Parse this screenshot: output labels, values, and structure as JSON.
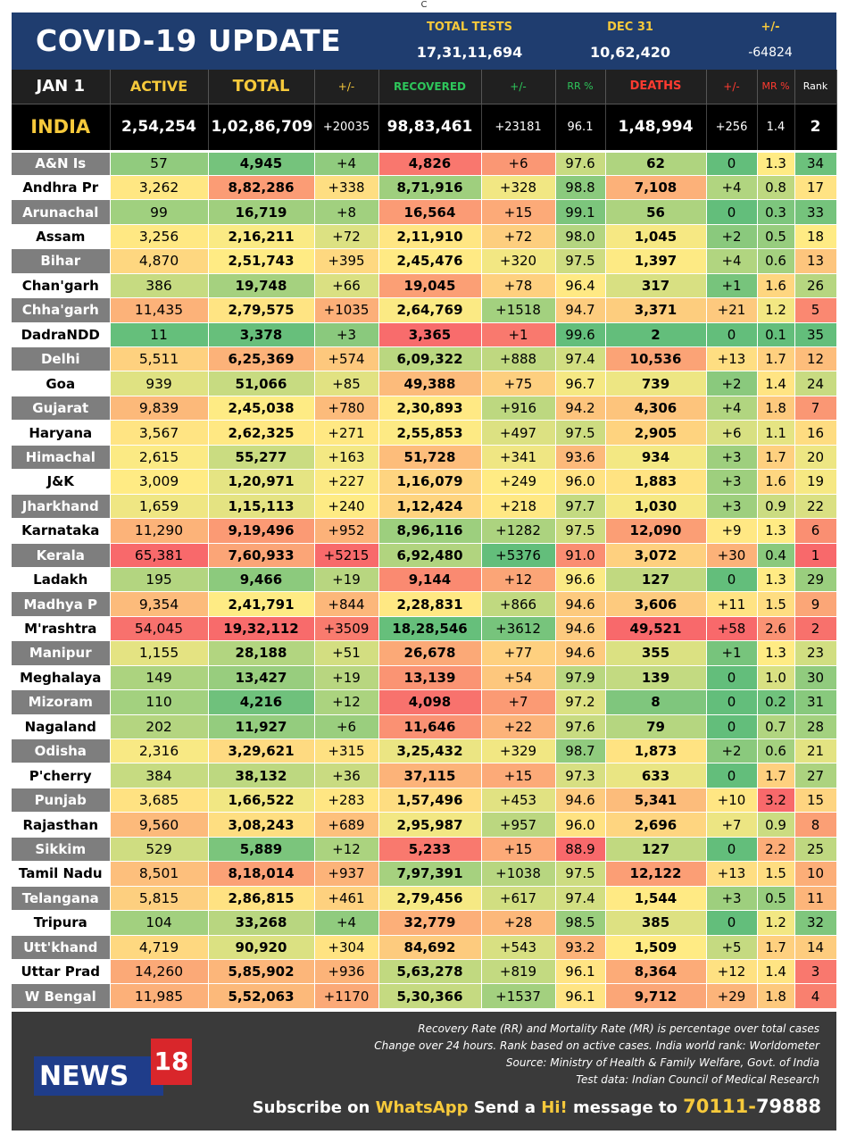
{
  "top_mark": "C",
  "header": {
    "title": "COVID-19 UPDATE",
    "total_tests_label": "TOTAL TESTS",
    "total_tests_value": "17,31,11,694",
    "date_label": "DEC 31",
    "date_value": "10,62,420",
    "change_label": "+/-",
    "change_value": "-64824"
  },
  "columns": {
    "date": "JAN 1",
    "active": "ACTIVE",
    "total": "TOTAL",
    "total_change": "+/-",
    "recovered": "RECOVERED",
    "recovered_change": "+/-",
    "rr": "RR %",
    "deaths": "DEATHS",
    "deaths_change": "+/-",
    "mr": "MR %",
    "rank": "Rank"
  },
  "india": {
    "name": "INDIA",
    "active": "2,54,254",
    "total": "1,02,86,709",
    "total_change": "+20035",
    "recovered": "98,83,461",
    "recovered_change": "+23181",
    "rr": "96.1",
    "deaths": "1,48,994",
    "deaths_change": "+256",
    "mr": "1.4",
    "rank": "2"
  },
  "rows": [
    {
      "name": "A&N Is",
      "active": "57",
      "total": "4,945",
      "total_change": "+4",
      "recovered": "4,826",
      "recovered_change": "+6",
      "rr": "97.6",
      "deaths": "62",
      "deaths_change": "0",
      "mr": "1.3",
      "rank": "34"
    },
    {
      "name": "Andhra Pr",
      "active": "3,262",
      "total": "8,82,286",
      "total_change": "+338",
      "recovered": "8,71,916",
      "recovered_change": "+328",
      "rr": "98.8",
      "deaths": "7,108",
      "deaths_change": "+4",
      "mr": "0.8",
      "rank": "17"
    },
    {
      "name": "Arunachal",
      "active": "99",
      "total": "16,719",
      "total_change": "+8",
      "recovered": "16,564",
      "recovered_change": "+15",
      "rr": "99.1",
      "deaths": "56",
      "deaths_change": "0",
      "mr": "0.3",
      "rank": "33"
    },
    {
      "name": "Assam",
      "active": "3,256",
      "total": "2,16,211",
      "total_change": "+72",
      "recovered": "2,11,910",
      "recovered_change": "+72",
      "rr": "98.0",
      "deaths": "1,045",
      "deaths_change": "+2",
      "mr": "0.5",
      "rank": "18"
    },
    {
      "name": "Bihar",
      "active": "4,870",
      "total": "2,51,743",
      "total_change": "+395",
      "recovered": "2,45,476",
      "recovered_change": "+320",
      "rr": "97.5",
      "deaths": "1,397",
      "deaths_change": "+4",
      "mr": "0.6",
      "rank": "13"
    },
    {
      "name": "Chan'garh",
      "active": "386",
      "total": "19,748",
      "total_change": "+66",
      "recovered": "19,045",
      "recovered_change": "+78",
      "rr": "96.4",
      "deaths": "317",
      "deaths_change": "+1",
      "mr": "1.6",
      "rank": "26"
    },
    {
      "name": "Chha'garh",
      "active": "11,435",
      "total": "2,79,575",
      "total_change": "+1035",
      "recovered": "2,64,769",
      "recovered_change": "+1518",
      "rr": "94.7",
      "deaths": "3,371",
      "deaths_change": "+21",
      "mr": "1.2",
      "rank": "5"
    },
    {
      "name": "DadraNDD",
      "active": "11",
      "total": "3,378",
      "total_change": "+3",
      "recovered": "3,365",
      "recovered_change": "+1",
      "rr": "99.6",
      "deaths": "2",
      "deaths_change": "0",
      "mr": "0.1",
      "rank": "35"
    },
    {
      "name": "Delhi",
      "active": "5,511",
      "total": "6,25,369",
      "total_change": "+574",
      "recovered": "6,09,322",
      "recovered_change": "+888",
      "rr": "97.4",
      "deaths": "10,536",
      "deaths_change": "+13",
      "mr": "1.7",
      "rank": "12"
    },
    {
      "name": "Goa",
      "active": "939",
      "total": "51,066",
      "total_change": "+85",
      "recovered": "49,388",
      "recovered_change": "+75",
      "rr": "96.7",
      "deaths": "739",
      "deaths_change": "+2",
      "mr": "1.4",
      "rank": "24"
    },
    {
      "name": "Gujarat",
      "active": "9,839",
      "total": "2,45,038",
      "total_change": "+780",
      "recovered": "2,30,893",
      "recovered_change": "+916",
      "rr": "94.2",
      "deaths": "4,306",
      "deaths_change": "+4",
      "mr": "1.8",
      "rank": "7"
    },
    {
      "name": "Haryana",
      "active": "3,567",
      "total": "2,62,325",
      "total_change": "+271",
      "recovered": "2,55,853",
      "recovered_change": "+497",
      "rr": "97.5",
      "deaths": "2,905",
      "deaths_change": "+6",
      "mr": "1.1",
      "rank": "16"
    },
    {
      "name": "Himachal",
      "active": "2,615",
      "total": "55,277",
      "total_change": "+163",
      "recovered": "51,728",
      "recovered_change": "+341",
      "rr": "93.6",
      "deaths": "934",
      "deaths_change": "+3",
      "mr": "1.7",
      "rank": "20"
    },
    {
      "name": "J&K",
      "active": "3,009",
      "total": "1,20,971",
      "total_change": "+227",
      "recovered": "1,16,079",
      "recovered_change": "+249",
      "rr": "96.0",
      "deaths": "1,883",
      "deaths_change": "+3",
      "mr": "1.6",
      "rank": "19"
    },
    {
      "name": "Jharkhand",
      "active": "1,659",
      "total": "1,15,113",
      "total_change": "+240",
      "recovered": "1,12,424",
      "recovered_change": "+218",
      "rr": "97.7",
      "deaths": "1,030",
      "deaths_change": "+3",
      "mr": "0.9",
      "rank": "22"
    },
    {
      "name": "Karnataka",
      "active": "11,290",
      "total": "9,19,496",
      "total_change": "+952",
      "recovered": "8,96,116",
      "recovered_change": "+1282",
      "rr": "97.5",
      "deaths": "12,090",
      "deaths_change": "+9",
      "mr": "1.3",
      "rank": "6"
    },
    {
      "name": "Kerala",
      "active": "65,381",
      "total": "7,60,933",
      "total_change": "+5215",
      "recovered": "6,92,480",
      "recovered_change": "+5376",
      "rr": "91.0",
      "deaths": "3,072",
      "deaths_change": "+30",
      "mr": "0.4",
      "rank": "1"
    },
    {
      "name": "Ladakh",
      "active": "195",
      "total": "9,466",
      "total_change": "+19",
      "recovered": "9,144",
      "recovered_change": "+12",
      "rr": "96.6",
      "deaths": "127",
      "deaths_change": "0",
      "mr": "1.3",
      "rank": "29"
    },
    {
      "name": "Madhya P",
      "active": "9,354",
      "total": "2,41,791",
      "total_change": "+844",
      "recovered": "2,28,831",
      "recovered_change": "+866",
      "rr": "94.6",
      "deaths": "3,606",
      "deaths_change": "+11",
      "mr": "1.5",
      "rank": "9"
    },
    {
      "name": "M'rashtra",
      "active": "54,045",
      "total": "19,32,112",
      "total_change": "+3509",
      "recovered": "18,28,546",
      "recovered_change": "+3612",
      "rr": "94.6",
      "deaths": "49,521",
      "deaths_change": "+58",
      "mr": "2.6",
      "rank": "2"
    },
    {
      "name": "Manipur",
      "active": "1,155",
      "total": "28,188",
      "total_change": "+51",
      "recovered": "26,678",
      "recovered_change": "+77",
      "rr": "94.6",
      "deaths": "355",
      "deaths_change": "+1",
      "mr": "1.3",
      "rank": "23"
    },
    {
      "name": "Meghalaya",
      "active": "149",
      "total": "13,427",
      "total_change": "+19",
      "recovered": "13,139",
      "recovered_change": "+54",
      "rr": "97.9",
      "deaths": "139",
      "deaths_change": "0",
      "mr": "1.0",
      "rank": "30"
    },
    {
      "name": "Mizoram",
      "active": "110",
      "total": "4,216",
      "total_change": "+12",
      "recovered": "4,098",
      "recovered_change": "+7",
      "rr": "97.2",
      "deaths": "8",
      "deaths_change": "0",
      "mr": "0.2",
      "rank": "31"
    },
    {
      "name": "Nagaland",
      "active": "202",
      "total": "11,927",
      "total_change": "+6",
      "recovered": "11,646",
      "recovered_change": "+22",
      "rr": "97.6",
      "deaths": "79",
      "deaths_change": "0",
      "mr": "0.7",
      "rank": "28"
    },
    {
      "name": "Odisha",
      "active": "2,316",
      "total": "3,29,621",
      "total_change": "+315",
      "recovered": "3,25,432",
      "recovered_change": "+329",
      "rr": "98.7",
      "deaths": "1,873",
      "deaths_change": "+2",
      "mr": "0.6",
      "rank": "21"
    },
    {
      "name": "P'cherry",
      "active": "384",
      "total": "38,132",
      "total_change": "+36",
      "recovered": "37,115",
      "recovered_change": "+15",
      "rr": "97.3",
      "deaths": "633",
      "deaths_change": "0",
      "mr": "1.7",
      "rank": "27"
    },
    {
      "name": "Punjab",
      "active": "3,685",
      "total": "1,66,522",
      "total_change": "+283",
      "recovered": "1,57,496",
      "recovered_change": "+453",
      "rr": "94.6",
      "deaths": "5,341",
      "deaths_change": "+10",
      "mr": "3.2",
      "rank": "15"
    },
    {
      "name": "Rajasthan",
      "active": "9,560",
      "total": "3,08,243",
      "total_change": "+689",
      "recovered": "2,95,987",
      "recovered_change": "+957",
      "rr": "96.0",
      "deaths": "2,696",
      "deaths_change": "+7",
      "mr": "0.9",
      "rank": "8"
    },
    {
      "name": "Sikkim",
      "active": "529",
      "total": "5,889",
      "total_change": "+12",
      "recovered": "5,233",
      "recovered_change": "+15",
      "rr": "88.9",
      "deaths": "127",
      "deaths_change": "0",
      "mr": "2.2",
      "rank": "25"
    },
    {
      "name": "Tamil Nadu",
      "active": "8,501",
      "total": "8,18,014",
      "total_change": "+937",
      "recovered": "7,97,391",
      "recovered_change": "+1038",
      "rr": "97.5",
      "deaths": "12,122",
      "deaths_change": "+13",
      "mr": "1.5",
      "rank": "10"
    },
    {
      "name": "Telangana",
      "active": "5,815",
      "total": "2,86,815",
      "total_change": "+461",
      "recovered": "2,79,456",
      "recovered_change": "+617",
      "rr": "97.4",
      "deaths": "1,544",
      "deaths_change": "+3",
      "mr": "0.5",
      "rank": "11"
    },
    {
      "name": "Tripura",
      "active": "104",
      "total": "33,268",
      "total_change": "+4",
      "recovered": "32,779",
      "recovered_change": "+28",
      "rr": "98.5",
      "deaths": "385",
      "deaths_change": "0",
      "mr": "1.2",
      "rank": "32"
    },
    {
      "name": "Utt'khand",
      "active": "4,719",
      "total": "90,920",
      "total_change": "+304",
      "recovered": "84,692",
      "recovered_change": "+543",
      "rr": "93.2",
      "deaths": "1,509",
      "deaths_change": "+5",
      "mr": "1.7",
      "rank": "14"
    },
    {
      "name": "Uttar Prad",
      "active": "14,260",
      "total": "5,85,902",
      "total_change": "+936",
      "recovered": "5,63,278",
      "recovered_change": "+819",
      "rr": "96.1",
      "deaths": "8,364",
      "deaths_change": "+12",
      "mr": "1.4",
      "rank": "3"
    },
    {
      "name": "W Bengal",
      "active": "11,985",
      "total": "5,52,063",
      "total_change": "+1170",
      "recovered": "5,30,366",
      "recovered_change": "+1537",
      "rr": "96.1",
      "deaths": "9,712",
      "deaths_change": "+29",
      "mr": "1.8",
      "rank": "4"
    }
  ],
  "footer": {
    "note_1": "Recovery Rate (RR) and Mortality Rate (MR) is percentage over total cases",
    "note_2": "Change over 24 hours. Rank based on active cases. India world rank: Worldometer",
    "note_3": "Source: Ministry of Health & Family Welfare, Govt. of India",
    "note_4": "Test data: Indian Council of Medical Research",
    "logo_word": "NEWS",
    "logo_number": "18",
    "subscribe_1": "Subscribe on ",
    "subscribe_2": "WhatsApp",
    "subscribe_3": " Send a ",
    "subscribe_4": "Hi!",
    "subscribe_5": " message to ",
    "subscribe_6": "70111-",
    "subscribe_7": "79888"
  },
  "colors": {
    "header_bg": "#1f3d6f",
    "accent_yellow": "#f6c93b",
    "accent_green": "#2ec65b",
    "accent_red": "#ff3b30",
    "footer_bg": "#3a3a3a",
    "logo_blue": "#1f3d8a",
    "logo_red": "#d9262b"
  }
}
